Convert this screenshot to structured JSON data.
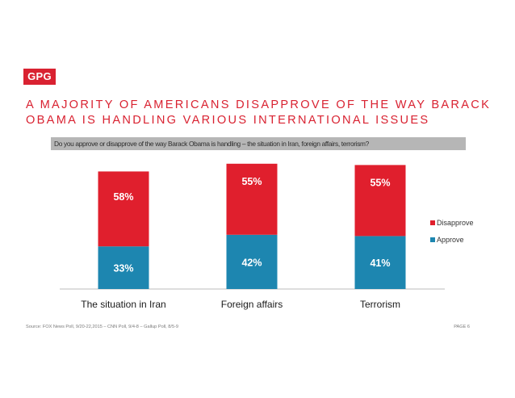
{
  "logo": {
    "text": "GPG"
  },
  "headline": {
    "line1": "A MAJORITY OF AMERICANS DISAPPROVE OF THE WAY BARACK",
    "line2": "OBAMA IS HANDLING VARIOUS INTERNATIONAL ISSUES"
  },
  "question": "Do you approve or disapprove of the way Barack Obama is handling – the situation in Iran, foreign affairs, terrorism?",
  "footer": {
    "source": "Source: FOX News Poll, 9/20-22,2015 – CNN Poll, 9/4-8 – Gallup Poll, 8/5-9",
    "page": "PAGE 6"
  },
  "colors": {
    "brand": "#d92231",
    "disapprove": "#e01f2d",
    "approve": "#1d86b0"
  },
  "chart_data": {
    "type": "bar",
    "stacked": true,
    "categories": [
      "The situation in Iran",
      "Foreign affairs",
      "Terrorism"
    ],
    "series": [
      {
        "name": "Approve",
        "values": [
          33,
          42,
          41
        ],
        "labels": [
          "33%",
          "42%",
          "41%"
        ],
        "color": "#1d86b0"
      },
      {
        "name": "Disapprove",
        "values": [
          58,
          55,
          55
        ],
        "labels": [
          "58%",
          "55%",
          "55%"
        ],
        "color": "#e01f2d"
      }
    ],
    "ylim": [
      0,
      100
    ],
    "legend": [
      "Disapprove",
      "Approve"
    ],
    "legend_position": "right",
    "grid": false
  }
}
